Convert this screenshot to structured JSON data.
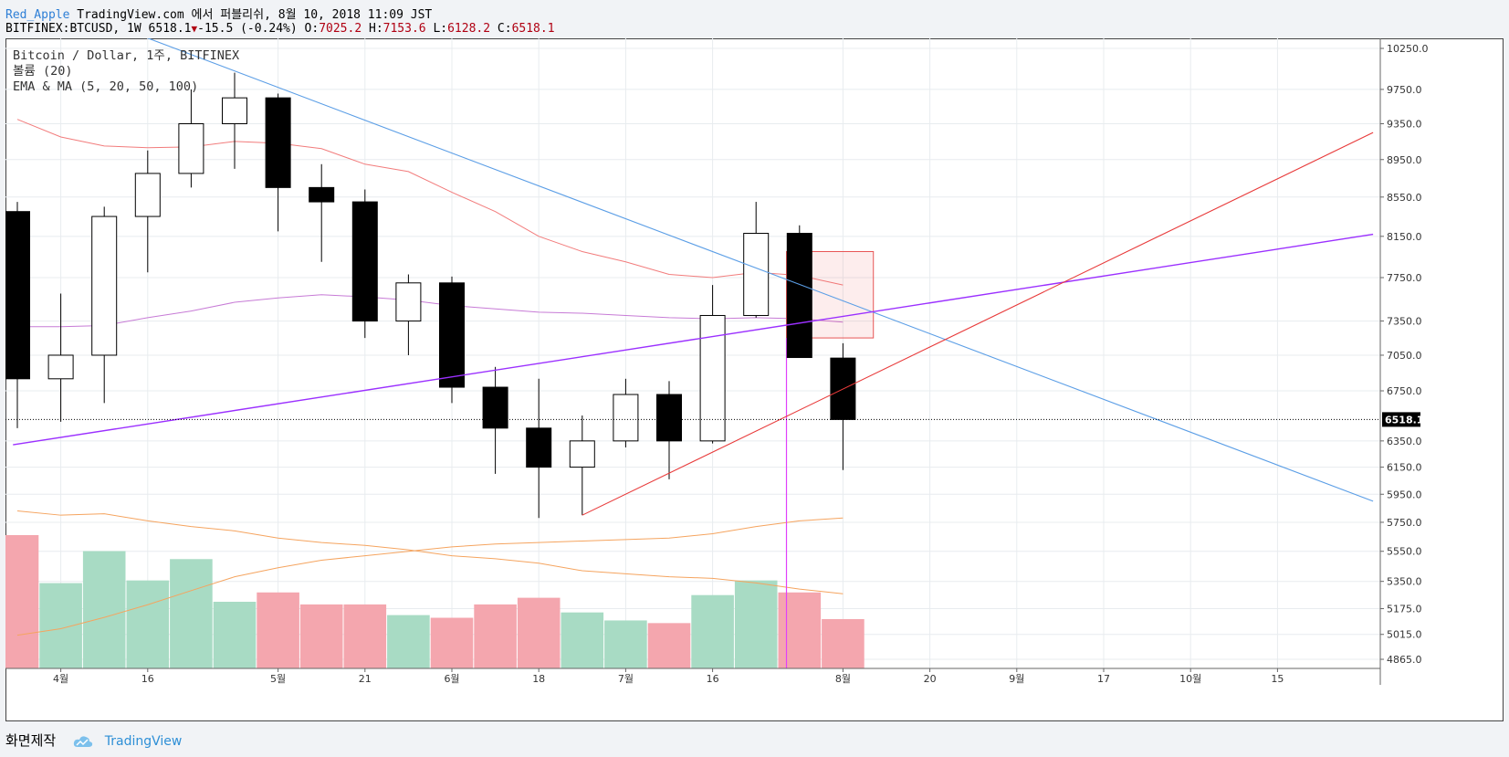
{
  "header": {
    "user": "Red_Apple",
    "published": "TradingView.com 에서 퍼블리쉬, 8월 10, 2018 11:09 JST",
    "symbol": "BITFINEX:BTCUSD, 1W",
    "last": "6518.1",
    "down_arrow": "▼",
    "change": "-15.5 (-0.24%)",
    "o_label": "O:",
    "o_value": "7025.2",
    "h_label": "H:",
    "h_value": "7153.6",
    "l_label": "L:",
    "l_value": "6128.2",
    "c_label": "C:",
    "c_value": "6518.1"
  },
  "legend": {
    "line1": "Bitcoin / Dollar, 1주, BITFINEX",
    "line2": "볼륨 (20)",
    "line3": "EMA & MA (5, 20, 50, 100)"
  },
  "footer": {
    "made_with": "화면제작",
    "brand": "TradingView"
  },
  "colors": {
    "bull_fill": "#ffffff",
    "bear_fill": "#000000",
    "vol_up": "#a8dbc4",
    "vol_down": "#f4a6ae",
    "trend_blue": "#5b9ee6",
    "trend_red": "#e83a3a",
    "trend_purple": "#9b30ff",
    "ma_red": "#f27c7c",
    "ma_violet": "#c77bd6",
    "ma_orange": "#f5a45f",
    "price_label_bg": "#000000"
  },
  "chart_data": {
    "type": "candlestick",
    "title": "Bitcoin / Dollar, 1주, BITFINEX",
    "x_tick_labels": [
      "4월",
      "16",
      "5월",
      "21",
      "6월",
      "18",
      "7월",
      "16",
      "8월",
      "20",
      "9월",
      "17",
      "10월",
      "15"
    ],
    "y_tick_labels": [
      "10250.0",
      "9750.0",
      "9350.0",
      "8950.0",
      "8550.0",
      "8150.0",
      "7750.0",
      "7350.0",
      "7050.0",
      "6750.0",
      "6350.0",
      "6150.0",
      "5950.0",
      "5750.0",
      "5550.0",
      "5350.0",
      "5175.0",
      "5015.0",
      "4865.0"
    ],
    "y_scale": "log",
    "current_price_label": "6518.1",
    "candles": [
      {
        "o": 8400,
        "h": 8500,
        "l": 6450,
        "c": 6850
      },
      {
        "o": 6850,
        "h": 7600,
        "l": 6500,
        "c": 7050
      },
      {
        "o": 7050,
        "h": 8450,
        "l": 6650,
        "c": 8350
      },
      {
        "o": 8350,
        "h": 9050,
        "l": 7800,
        "c": 8800
      },
      {
        "o": 8800,
        "h": 9750,
        "l": 8650,
        "c": 9350
      },
      {
        "o": 9350,
        "h": 9950,
        "l": 8850,
        "c": 9650
      },
      {
        "o": 9650,
        "h": 9700,
        "l": 8200,
        "c": 8650
      },
      {
        "o": 8650,
        "h": 8900,
        "l": 7900,
        "c": 8500
      },
      {
        "o": 8500,
        "h": 8630,
        "l": 7200,
        "c": 7350
      },
      {
        "o": 7350,
        "h": 7780,
        "l": 7050,
        "c": 7700
      },
      {
        "o": 7700,
        "h": 7760,
        "l": 6650,
        "c": 6780
      },
      {
        "o": 6780,
        "h": 6950,
        "l": 6100,
        "c": 6450
      },
      {
        "o": 6450,
        "h": 6850,
        "l": 5780,
        "c": 6150
      },
      {
        "o": 6150,
        "h": 6550,
        "l": 5800,
        "c": 6350
      },
      {
        "o": 6350,
        "h": 6850,
        "l": 6300,
        "c": 6720
      },
      {
        "o": 6720,
        "h": 6830,
        "l": 6060,
        "c": 6350
      },
      {
        "o": 6350,
        "h": 7680,
        "l": 6330,
        "c": 7400
      },
      {
        "o": 7400,
        "h": 8500,
        "l": 7380,
        "c": 8180
      },
      {
        "o": 8180,
        "h": 8260,
        "l": 7040,
        "c": 7030
      },
      {
        "o": 7025.2,
        "h": 7153.6,
        "l": 6128.2,
        "c": 6518.1
      }
    ],
    "volume": [
      {
        "dir": "down",
        "v": 1.0
      },
      {
        "dir": "up",
        "v": 0.64
      },
      {
        "dir": "up",
        "v": 0.88
      },
      {
        "dir": "up",
        "v": 0.66
      },
      {
        "dir": "up",
        "v": 0.82
      },
      {
        "dir": "up",
        "v": 0.5
      },
      {
        "dir": "down",
        "v": 0.57
      },
      {
        "dir": "down",
        "v": 0.48
      },
      {
        "dir": "down",
        "v": 0.48
      },
      {
        "dir": "up",
        "v": 0.4
      },
      {
        "dir": "down",
        "v": 0.38
      },
      {
        "dir": "down",
        "v": 0.48
      },
      {
        "dir": "down",
        "v": 0.53
      },
      {
        "dir": "up",
        "v": 0.42
      },
      {
        "dir": "up",
        "v": 0.36
      },
      {
        "dir": "down",
        "v": 0.34
      },
      {
        "dir": "up",
        "v": 0.55
      },
      {
        "dir": "up",
        "v": 0.66
      },
      {
        "dir": "down",
        "v": 0.57
      },
      {
        "dir": "down",
        "v": 0.37
      }
    ],
    "moving_averages": [
      {
        "name": "ma-red",
        "color": "#f27c7c",
        "values": [
          9400,
          9200,
          9100,
          9080,
          9090,
          9150,
          9130,
          9070,
          8900,
          8820,
          8600,
          8400,
          8150,
          8000,
          7900,
          7780,
          7750,
          7800,
          7770,
          7680
        ]
      },
      {
        "name": "ma-violet",
        "color": "#c77bd6",
        "values": [
          7300,
          7300,
          7310,
          7380,
          7440,
          7520,
          7560,
          7590,
          7570,
          7540,
          7490,
          7460,
          7430,
          7420,
          7400,
          7380,
          7370,
          7380,
          7370,
          7340
        ]
      }
    ],
    "trendlines": [
      {
        "name": "blue-resistance",
        "color": "#5b9ee6",
        "from": {
          "i": 2.9,
          "p": 10400
        },
        "to": {
          "i": 31.2,
          "p": 5900
        }
      },
      {
        "name": "purple-support",
        "color": "#9b30ff",
        "from": {
          "i": -0.1,
          "p": 6320
        },
        "to": {
          "i": 31.2,
          "p": 8170
        }
      },
      {
        "name": "red-support",
        "color": "#e83a3a",
        "from": {
          "i": 13.0,
          "p": 5800
        },
        "to": {
          "i": 31.2,
          "p": 9250
        }
      }
    ],
    "box": {
      "from": {
        "i": 17.7,
        "p": 8000
      },
      "to": {
        "i": 19.7,
        "p": 7200
      }
    },
    "vertical_marker_index": 17.7
  }
}
